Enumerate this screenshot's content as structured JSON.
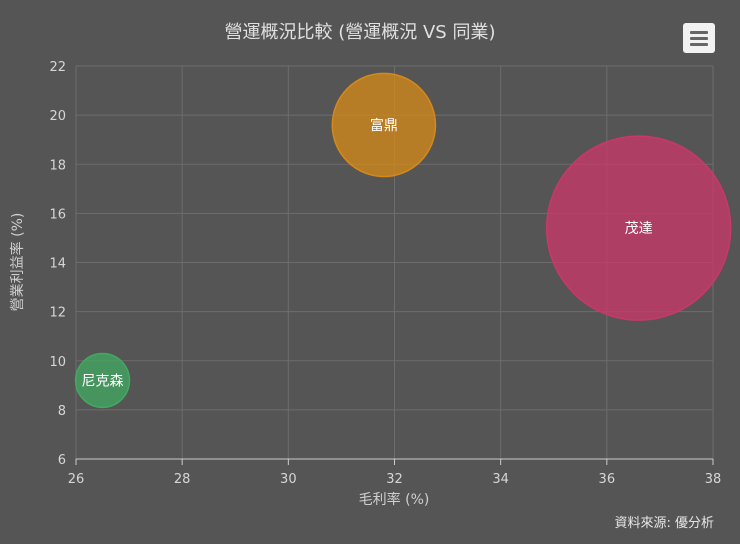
{
  "chart_data": {
    "type": "bubble",
    "title": "營運概況比較 (營運概況 VS 同業)",
    "xlabel": "毛利率 (%)",
    "ylabel": "營業利益率 (%)",
    "xlim": [
      26,
      38
    ],
    "ylim": [
      6,
      22
    ],
    "x_ticks": [
      26,
      28,
      30,
      32,
      34,
      36,
      38
    ],
    "y_ticks": [
      6,
      8,
      10,
      12,
      14,
      16,
      18,
      20,
      22
    ],
    "grid": true,
    "series": [
      {
        "name": "尼克森",
        "x": 26.5,
        "y": 9.2,
        "size": 0.3,
        "color": "#43a861"
      },
      {
        "name": "富鼎",
        "x": 31.8,
        "y": 19.6,
        "size": 1.1,
        "color": "#d4891a"
      },
      {
        "name": "茂達",
        "x": 36.6,
        "y": 15.4,
        "size": 3.5,
        "color": "#c9386a"
      }
    ]
  },
  "credit": "資料來源: 優分析",
  "menu": {
    "icon": "hamburger-menu-icon"
  }
}
